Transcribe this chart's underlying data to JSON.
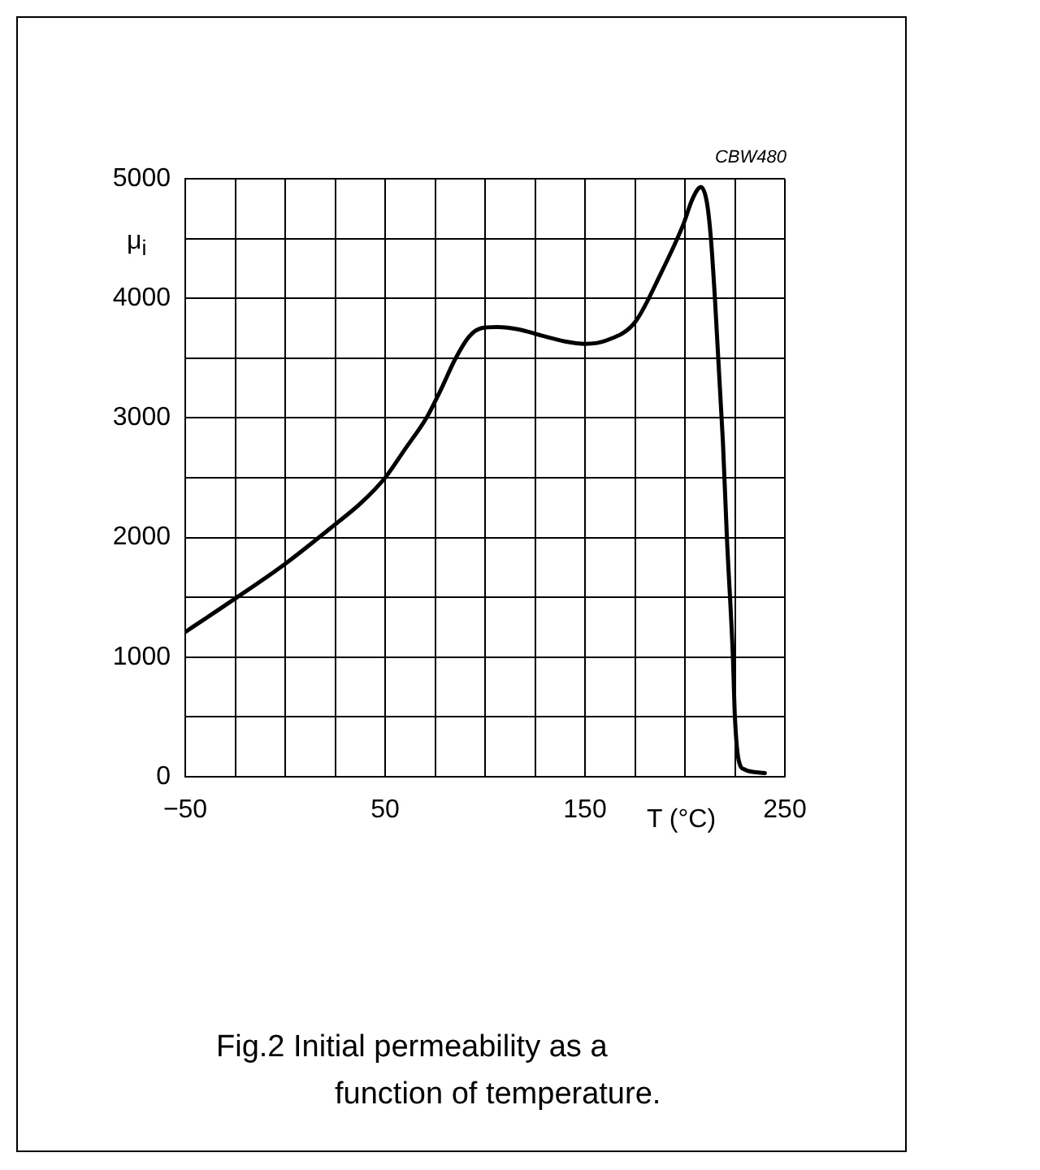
{
  "chart_data": {
    "type": "line",
    "xlabel": "T (°C)",
    "ylabel": "μ$_{i}$",
    "annotations": [
      "CBW480",
      "Fig.2 Initial permeability as a function of temperature."
    ],
    "x": [
      -50,
      -25,
      0,
      25,
      38,
      50,
      60,
      71,
      78,
      85,
      92,
      98,
      106,
      117,
      128,
      140,
      150,
      161,
      175,
      188,
      199,
      204,
      208,
      211,
      213,
      215,
      219,
      221,
      224,
      225,
      227,
      230,
      240
    ],
    "series": [
      {
        "color": "#000000",
        "values": [
          1210,
          1490,
          1780,
          2110,
          2290,
          2500,
          2740,
          3010,
          3240,
          3490,
          3680,
          3750,
          3760,
          3740,
          3690,
          3640,
          3620,
          3650,
          3800,
          4210,
          4610,
          4840,
          4930,
          4800,
          4500,
          4000,
          2800,
          2000,
          1000,
          500,
          130,
          60,
          30
        ]
      }
    ],
    "xlim": [
      -50,
      250
    ],
    "ylim": [
      0,
      5000
    ],
    "xticks": [
      {
        "value": -50,
        "label": "−50"
      },
      {
        "value": -25,
        "label": null
      },
      {
        "value": 0,
        "label": null
      },
      {
        "value": 25,
        "label": null
      },
      50,
      {
        "value": 75,
        "label": null
      },
      {
        "value": 100,
        "label": null
      },
      {
        "value": 125,
        "label": null
      },
      150,
      {
        "value": 175,
        "label": null
      },
      {
        "value": 200,
        "label": null
      },
      {
        "value": 225,
        "label": null
      },
      250
    ],
    "yticks": [
      0,
      {
        "value": 500,
        "label": null
      },
      1000,
      {
        "value": 1500,
        "label": null
      },
      2000,
      {
        "value": 2500,
        "label": null
      },
      3000,
      {
        "value": 3500,
        "label": null
      },
      4000,
      {
        "value": 4500,
        "label": null
      },
      5000
    ],
    "grid": true,
    "marker": "none",
    "line_style": "solid"
  }
}
